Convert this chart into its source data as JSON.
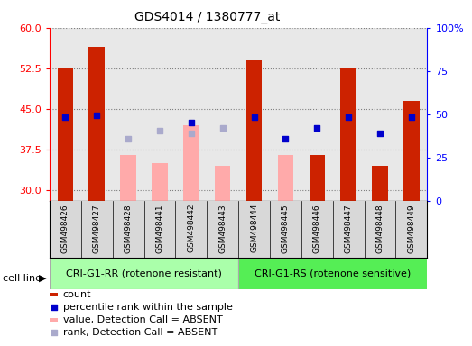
{
  "title": "GDS4014 / 1380777_at",
  "samples": [
    "GSM498426",
    "GSM498427",
    "GSM498428",
    "GSM498441",
    "GSM498442",
    "GSM498443",
    "GSM498444",
    "GSM498445",
    "GSM498446",
    "GSM498447",
    "GSM498448",
    "GSM498449"
  ],
  "group1_label": "CRI-G1-RR (rotenone resistant)",
  "group2_label": "CRI-G1-RS (rotenone sensitive)",
  "group1_count": 6,
  "group2_count": 6,
  "ylim_left": [
    28,
    60
  ],
  "ylim_right": [
    0,
    100
  ],
  "yticks_left": [
    30,
    37.5,
    45,
    52.5,
    60
  ],
  "yticks_right": [
    0,
    25,
    50,
    75,
    100
  ],
  "count_values": [
    52.5,
    56.5,
    null,
    null,
    null,
    null,
    54.0,
    36.5,
    36.5,
    52.5,
    34.5,
    46.5
  ],
  "absent_value_values": [
    null,
    null,
    36.5,
    35.0,
    42.0,
    34.5,
    null,
    36.5,
    null,
    null,
    null,
    null
  ],
  "percentile_values": [
    43.5,
    43.8,
    null,
    null,
    42.5,
    null,
    43.5,
    39.5,
    41.5,
    43.5,
    40.5,
    43.5
  ],
  "absent_rank_values": [
    null,
    null,
    39.5,
    41.0,
    40.5,
    41.5,
    null,
    null,
    null,
    null,
    null,
    null
  ],
  "bar_color_red": "#cc2200",
  "bar_color_pink": "#ffaaaa",
  "dot_color_blue": "#0000cc",
  "dot_color_light_blue": "#aaaacc",
  "group1_bg": "#aaffaa",
  "group2_bg": "#55ee55",
  "plot_bg": "#e8e8e8",
  "sample_bg": "#d8d8d8",
  "cell_line_label": "cell line"
}
